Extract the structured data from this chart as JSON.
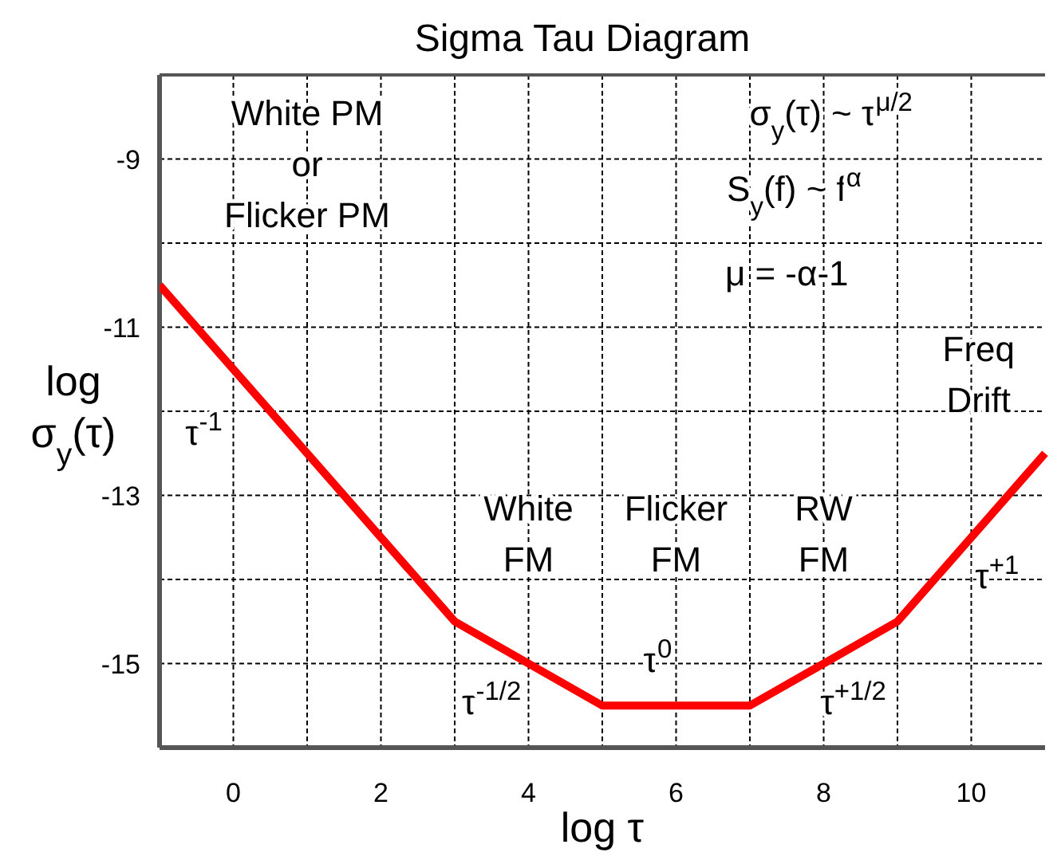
{
  "chart_data": {
    "type": "line",
    "title": "Sigma Tau Diagram",
    "xlabel": "log τ",
    "ylabel": "log\nσ$_{y}$(τ)",
    "x": [
      -1,
      3,
      5,
      7,
      9,
      11
    ],
    "series": [
      {
        "color": "#ff0000",
        "values": [
          -10.5,
          -14.5,
          -15.5,
          -15.5,
          -14.5,
          -12.5
        ]
      }
    ],
    "xlim": [
      -1,
      11
    ],
    "ylim": [
      -16,
      -8
    ],
    "xticks": [
      0,
      {
        "value": 1,
        "label": null
      },
      2,
      {
        "value": 3,
        "label": null
      },
      4,
      {
        "value": 5,
        "label": null
      },
      6,
      {
        "value": 7,
        "label": null
      },
      8,
      {
        "value": 9,
        "label": null
      },
      10
    ],
    "yticks": [
      -15,
      {
        "value": -14,
        "label": null
      },
      -13,
      {
        "value": -12,
        "label": null
      },
      -11,
      {
        "value": -10,
        "label": null
      },
      -9
    ],
    "grid": true,
    "marker": "none",
    "line_style": "solid",
    "annotations": [
      "White PM\nor\nFlicker PM",
      "σ$_{y}$(τ) ~ τ$^{μ/2}$",
      "S$_{y}$(f) ~ f$^{α}$",
      "μ = -α-1",
      "Freq\nDrift",
      "White\nFM",
      "Flicker\nFM",
      "RW\nFM",
      "τ$^{-1}$",
      "τ$^{-1/2}$",
      "τ$^{0}$",
      "τ$^{+1/2}$",
      "τ$^{+1}$"
    ]
  }
}
